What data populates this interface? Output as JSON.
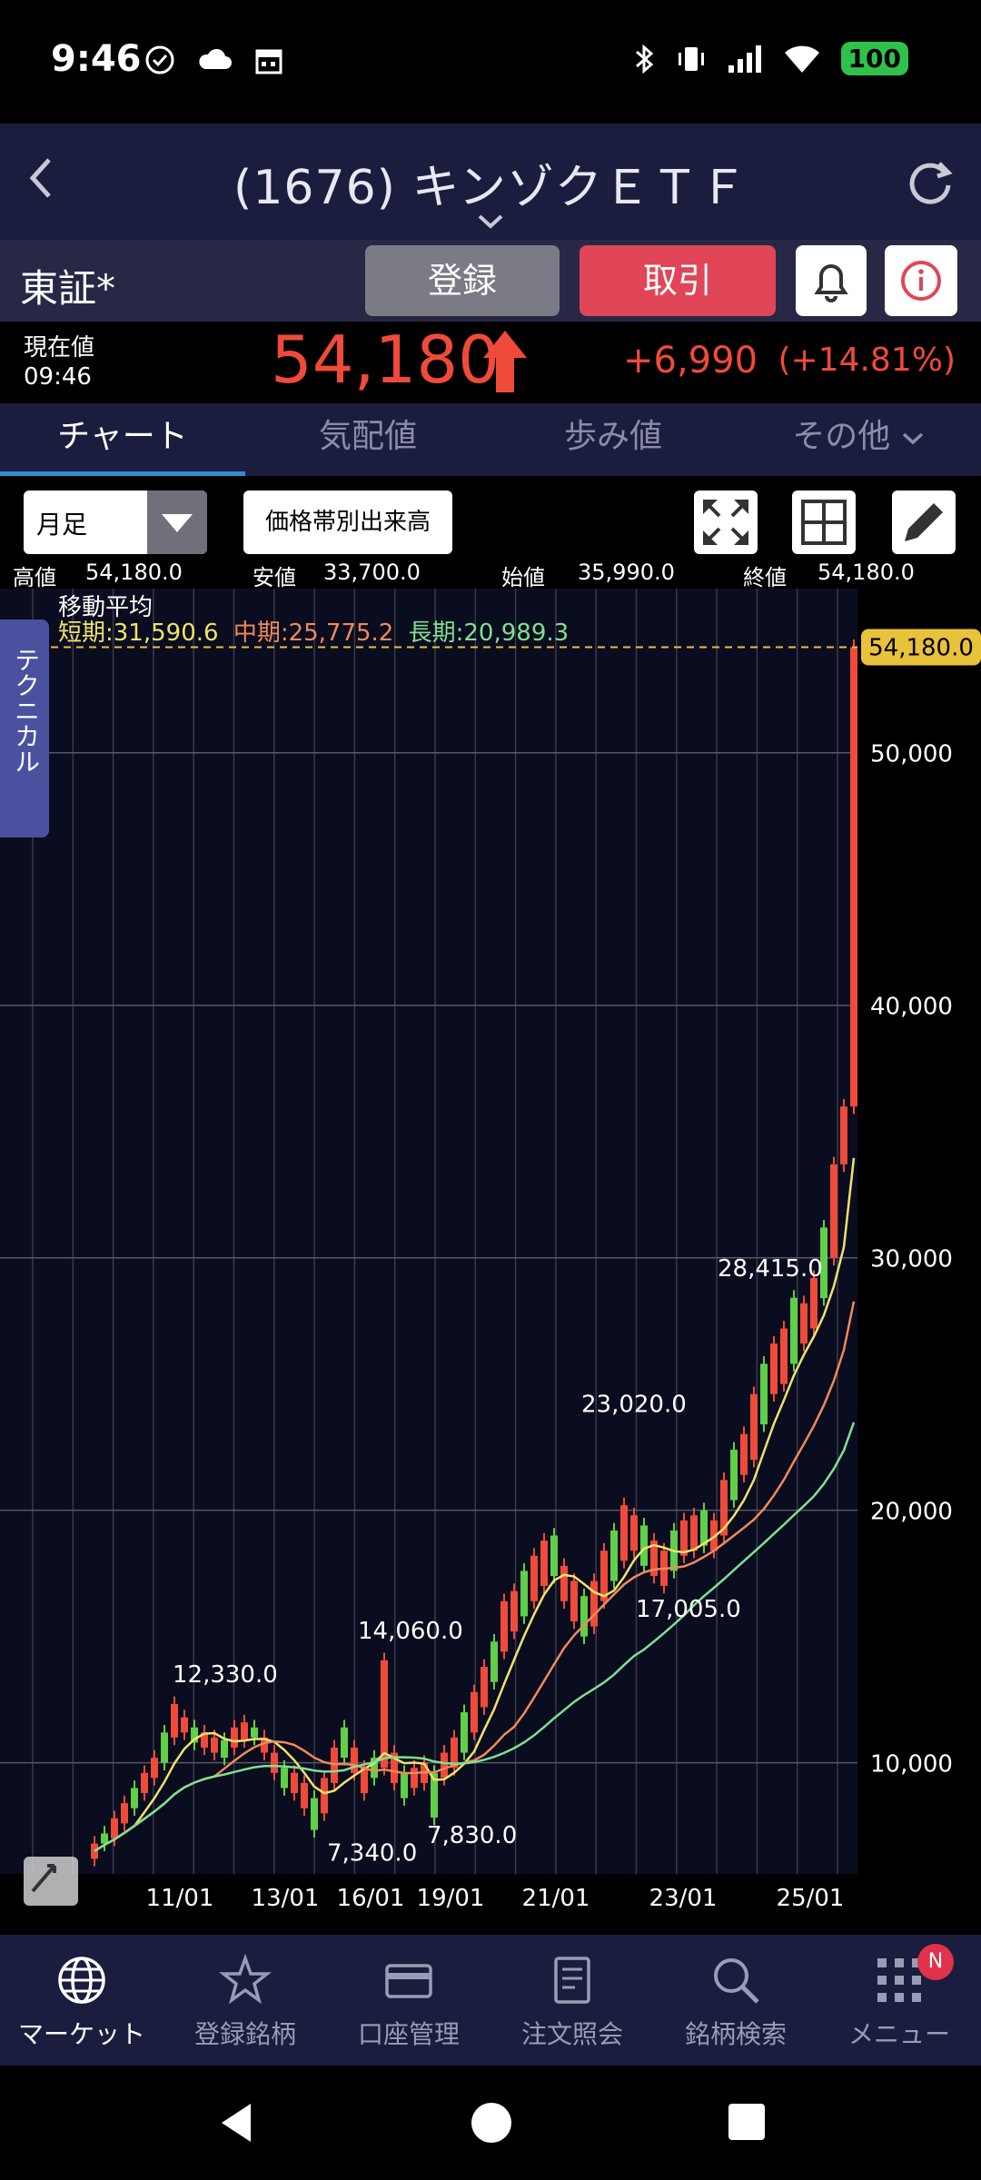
{
  "status_bar": {
    "time": "9:46",
    "battery": "100"
  },
  "header": {
    "title": "(1676) キンゾクＥＴＦ"
  },
  "exchange": {
    "label": "東証*",
    "register_label": "登録",
    "trade_label": "取引"
  },
  "price": {
    "label": "現在値",
    "time": "09:46",
    "value": "54,180",
    "change": "+6,990",
    "change_pct": "(+14.81%)"
  },
  "tabs": [
    {
      "label": "チャート",
      "active": true
    },
    {
      "label": "気配値",
      "active": false
    },
    {
      "label": "歩み値",
      "active": false
    },
    {
      "label": "その他",
      "active": false
    }
  ],
  "toolbar": {
    "period_value": "月足",
    "volume_label": "価格帯別出来高"
  },
  "ohlc": {
    "high_label": "高値",
    "high": "54,180.0",
    "low_label": "安値",
    "low": "33,700.0",
    "open_label": "始値",
    "open": "35,990.0",
    "close_label": "終値",
    "close": "54,180.0"
  },
  "moving_average": {
    "title": "移動平均",
    "short": "短期:31,590.6",
    "mid": "中期:25,775.2",
    "long": "長期:20,989.3"
  },
  "technical_tab": "テクニカル",
  "chart_data": {
    "type": "candlestick",
    "y_ticks": [
      "50,000",
      "40,000",
      "30,000",
      "20,000",
      "10,000"
    ],
    "y_tick_values": [
      50000,
      40000,
      30000,
      20000,
      10000
    ],
    "x_ticks": [
      "11/01",
      "13/01",
      "16/01",
      "19/01",
      "21/01",
      "23/01",
      "25/01"
    ],
    "last_price_label": "54,180.0",
    "last_price": 54180,
    "ylim": [
      5600,
      56500
    ],
    "annotations": [
      {
        "text": "12,330.0",
        "value": 12330
      },
      {
        "text": "14,060.0",
        "value": 14060
      },
      {
        "text": "7,340.0",
        "value": 7340
      },
      {
        "text": "7,830.0",
        "value": 7830
      },
      {
        "text": "23,020.0",
        "value": 23020
      },
      {
        "text": "17,005.0",
        "value": 17005
      },
      {
        "text": "28,415.0",
        "value": 28415
      }
    ],
    "series": [
      {
        "name": "短期",
        "color": "#f1e36a"
      },
      {
        "name": "中期",
        "color": "#f08a5a"
      },
      {
        "name": "長期",
        "color": "#7fe090"
      }
    ],
    "colors": {
      "up": "#f04a3a",
      "down": "#5fd048",
      "grid": "#3a3a4a",
      "price_line": "#e8c23a"
    }
  },
  "bottom_nav": [
    {
      "label": "マーケット",
      "icon": "globe-icon",
      "active": true
    },
    {
      "label": "登録銘柄",
      "icon": "star-icon",
      "active": false
    },
    {
      "label": "口座管理",
      "icon": "card-icon",
      "active": false
    },
    {
      "label": "注文照会",
      "icon": "document-icon",
      "active": false
    },
    {
      "label": "銘柄検索",
      "icon": "search-icon",
      "active": false
    },
    {
      "label": "メニュー",
      "icon": "menu-grid-icon",
      "active": false,
      "badge": "N"
    }
  ]
}
